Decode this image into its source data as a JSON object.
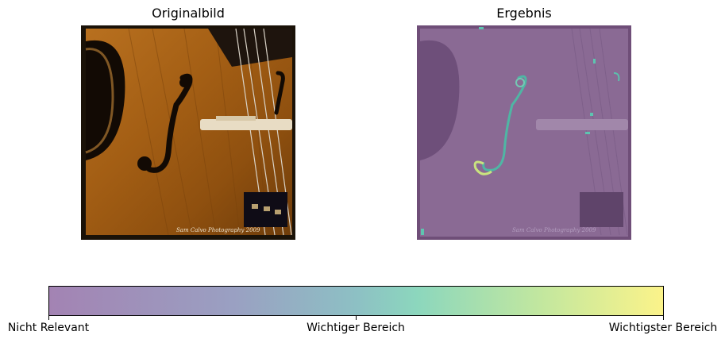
{
  "panels": {
    "left_title": "Originalbild",
    "right_title": "Ergebnis",
    "watermark_text": "Sam Calvo Photography 2009"
  },
  "colorbar": {
    "labels": [
      "Nicht Relevant",
      "Wichtiger Bereich",
      "Wichtigster Bereich"
    ],
    "colors": [
      "#a383b3",
      "#8dd5c0",
      "#fbf38a"
    ]
  }
}
